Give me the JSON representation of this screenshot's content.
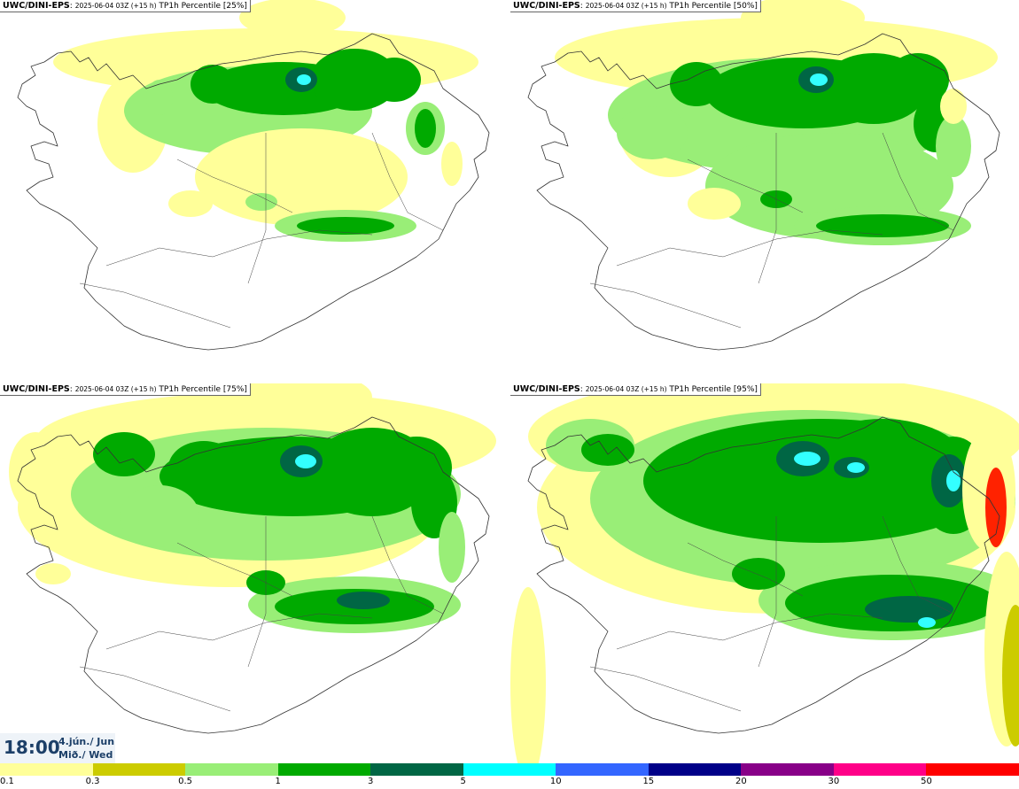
{
  "panels": [
    {
      "model": "UWC/DINI-EPS",
      "subtitle": "2025-06-04 03Z (+15 h)",
      "product": "TP1h Percentile [25%]",
      "percentile": 25
    },
    {
      "model": "UWC/DINI-EPS",
      "subtitle": "2025-06-04 03Z (+15 h)",
      "product": "TP1h Percentile [50%]",
      "percentile": 50
    },
    {
      "model": "UWC/DINI-EPS",
      "subtitle": "2025-06-04 03Z (+15 h)",
      "product": "TP1h Percentile [75%]",
      "percentile": 75
    },
    {
      "model": "UWC/DINI-EPS",
      "subtitle": "2025-06-04 03Z (+15 h)",
      "product": "TP1h Percentile [95%]",
      "percentile": 95
    }
  ],
  "valid_time": {
    "time": "18:00",
    "date_line1": "4.jún./ Jun",
    "date_line2": "Mið./ Wed"
  },
  "legend": {
    "labels": [
      "0.1",
      "0.3",
      "0.5",
      "1",
      "3",
      "5",
      "10",
      "15",
      "20",
      "30",
      "50"
    ],
    "colors": [
      "#ffff99",
      "#cccc00",
      "#99ee77",
      "#00aa00",
      "#006644",
      "#00ffff",
      "#3366ff",
      "#000088",
      "#880088",
      "#ff0088",
      "#ff0000"
    ]
  }
}
